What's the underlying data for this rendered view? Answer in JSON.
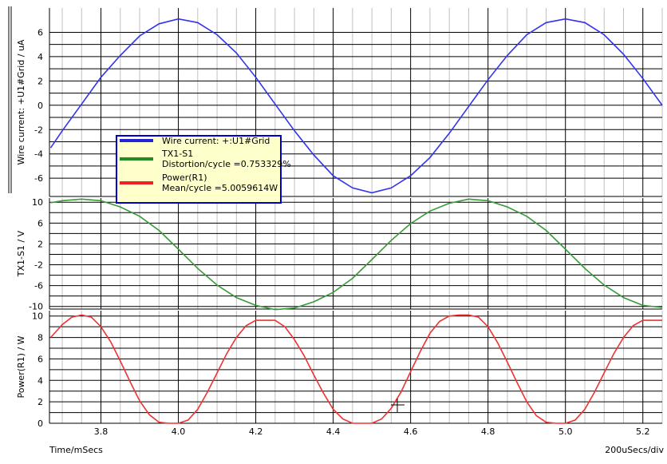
{
  "chart_data": [
    {
      "type": "line",
      "ylabel": "Wire current: +U1#Grid / uA",
      "ylim": [
        -7.5,
        8
      ],
      "yticks": [
        -6,
        -4,
        -2,
        0,
        2,
        4,
        6
      ],
      "grid": true,
      "series": [
        {
          "name": "Wire current: +:U1#Grid",
          "color": "#3333ee",
          "x": [
            3.67,
            3.7,
            3.75,
            3.8,
            3.85,
            3.9,
            3.95,
            4.0,
            4.05,
            4.1,
            4.15,
            4.2,
            4.25,
            4.3,
            4.35,
            4.4,
            4.45,
            4.5,
            4.55,
            4.6,
            4.65,
            4.7,
            4.75,
            4.8,
            4.85,
            4.9,
            4.95,
            5.0,
            5.05,
            5.1,
            5.15,
            5.2,
            5.25
          ],
          "y": [
            -3.5,
            -2.1,
            0.1,
            2.3,
            4.1,
            5.7,
            6.7,
            7.1,
            6.8,
            5.8,
            4.3,
            2.3,
            0.1,
            -2.1,
            -4.1,
            -5.8,
            -6.8,
            -7.2,
            -6.8,
            -5.8,
            -4.3,
            -2.3,
            -0.1,
            2.1,
            4.1,
            5.8,
            6.8,
            7.1,
            6.8,
            5.8,
            4.2,
            2.2,
            0.0
          ]
        }
      ],
      "legend": {
        "placement": "inside-left",
        "entries": [
          {
            "color": "#2222dd",
            "lines": [
              "Wire current: +:U1#Grid"
            ]
          },
          {
            "color": "#228b22",
            "lines": [
              "TX1-S1",
              "Distortion/cycle =0.753329%"
            ]
          },
          {
            "color": "#ee2222",
            "lines": [
              "Power(R1)",
              "Mean/cycle =5.0059614W"
            ]
          }
        ]
      }
    },
    {
      "type": "line",
      "ylabel": "TX1-S1 / V",
      "ylim": [
        -10.5,
        10.8
      ],
      "yticks": [
        -10,
        -6,
        -2,
        2,
        6,
        10
      ],
      "grid": true,
      "series": [
        {
          "name": "TX1-S1",
          "color": "#3a9a3a",
          "x": [
            3.67,
            3.7,
            3.75,
            3.8,
            3.85,
            3.9,
            3.95,
            4.0,
            4.05,
            4.1,
            4.15,
            4.2,
            4.25,
            4.3,
            4.35,
            4.4,
            4.45,
            4.5,
            4.55,
            4.6,
            4.65,
            4.7,
            4.75,
            4.8,
            4.85,
            4.9,
            4.95,
            5.0,
            5.05,
            5.1,
            5.15,
            5.2,
            5.25
          ],
          "y": [
            9.9,
            10.3,
            10.6,
            10.3,
            9.1,
            7.3,
            4.6,
            1.0,
            -2.7,
            -5.9,
            -8.3,
            -9.8,
            -10.6,
            -10.3,
            -9.1,
            -7.3,
            -4.6,
            -1.0,
            2.7,
            5.9,
            8.3,
            9.8,
            10.6,
            10.3,
            9.1,
            7.3,
            4.6,
            1.0,
            -2.7,
            -5.9,
            -8.3,
            -9.8,
            -10.2
          ]
        }
      ]
    },
    {
      "type": "line",
      "xlabel": "Time/mSecs",
      "ylabel": "Power(R1) / W",
      "ylim": [
        0,
        10.5
      ],
      "yticks": [
        0,
        2,
        4,
        6,
        8,
        10
      ],
      "xlim": [
        3.667,
        5.25
      ],
      "xticks": [
        3.8,
        4.0,
        4.2,
        4.4,
        4.6,
        4.8,
        5.0,
        5.2
      ],
      "x_scale_label": "200uSecs/div",
      "grid": true,
      "series": [
        {
          "name": "Power(R1)",
          "color": "#ee3333",
          "x": [
            3.67,
            3.7,
            3.725,
            3.75,
            3.775,
            3.8,
            3.825,
            3.85,
            3.875,
            3.9,
            3.925,
            3.95,
            3.975,
            4.0,
            4.025,
            4.05,
            4.075,
            4.1,
            4.125,
            4.15,
            4.175,
            4.2,
            4.225,
            4.25,
            4.275,
            4.3,
            4.325,
            4.35,
            4.375,
            4.4,
            4.425,
            4.45,
            4.475,
            4.5,
            4.525,
            4.55,
            4.575,
            4.6,
            4.625,
            4.65,
            4.675,
            4.7,
            4.725,
            4.75,
            4.775,
            4.8,
            4.825,
            4.85,
            4.875,
            4.9,
            4.925,
            4.95,
            4.975,
            5.0,
            5.025,
            5.05,
            5.075,
            5.1,
            5.125,
            5.15,
            5.175,
            5.2,
            5.225,
            5.25
          ],
          "y": [
            8.0,
            9.2,
            9.9,
            10.1,
            9.9,
            9.0,
            7.6,
            5.8,
            3.9,
            2.1,
            0.8,
            0.1,
            0.0,
            0.0,
            0.3,
            1.3,
            2.9,
            4.7,
            6.5,
            8.0,
            9.1,
            9.6,
            9.6,
            9.6,
            9.0,
            7.8,
            6.3,
            4.5,
            2.8,
            1.3,
            0.4,
            0.0,
            0.0,
            0.0,
            0.4,
            1.4,
            2.9,
            4.8,
            6.7,
            8.4,
            9.5,
            10.0,
            10.1,
            10.1,
            9.9,
            9.0,
            7.5,
            5.7,
            3.8,
            2.0,
            0.7,
            0.1,
            0.0,
            0.0,
            0.3,
            1.3,
            2.9,
            4.7,
            6.5,
            8.0,
            9.1,
            9.6,
            9.6,
            9.6
          ]
        }
      ]
    }
  ]
}
